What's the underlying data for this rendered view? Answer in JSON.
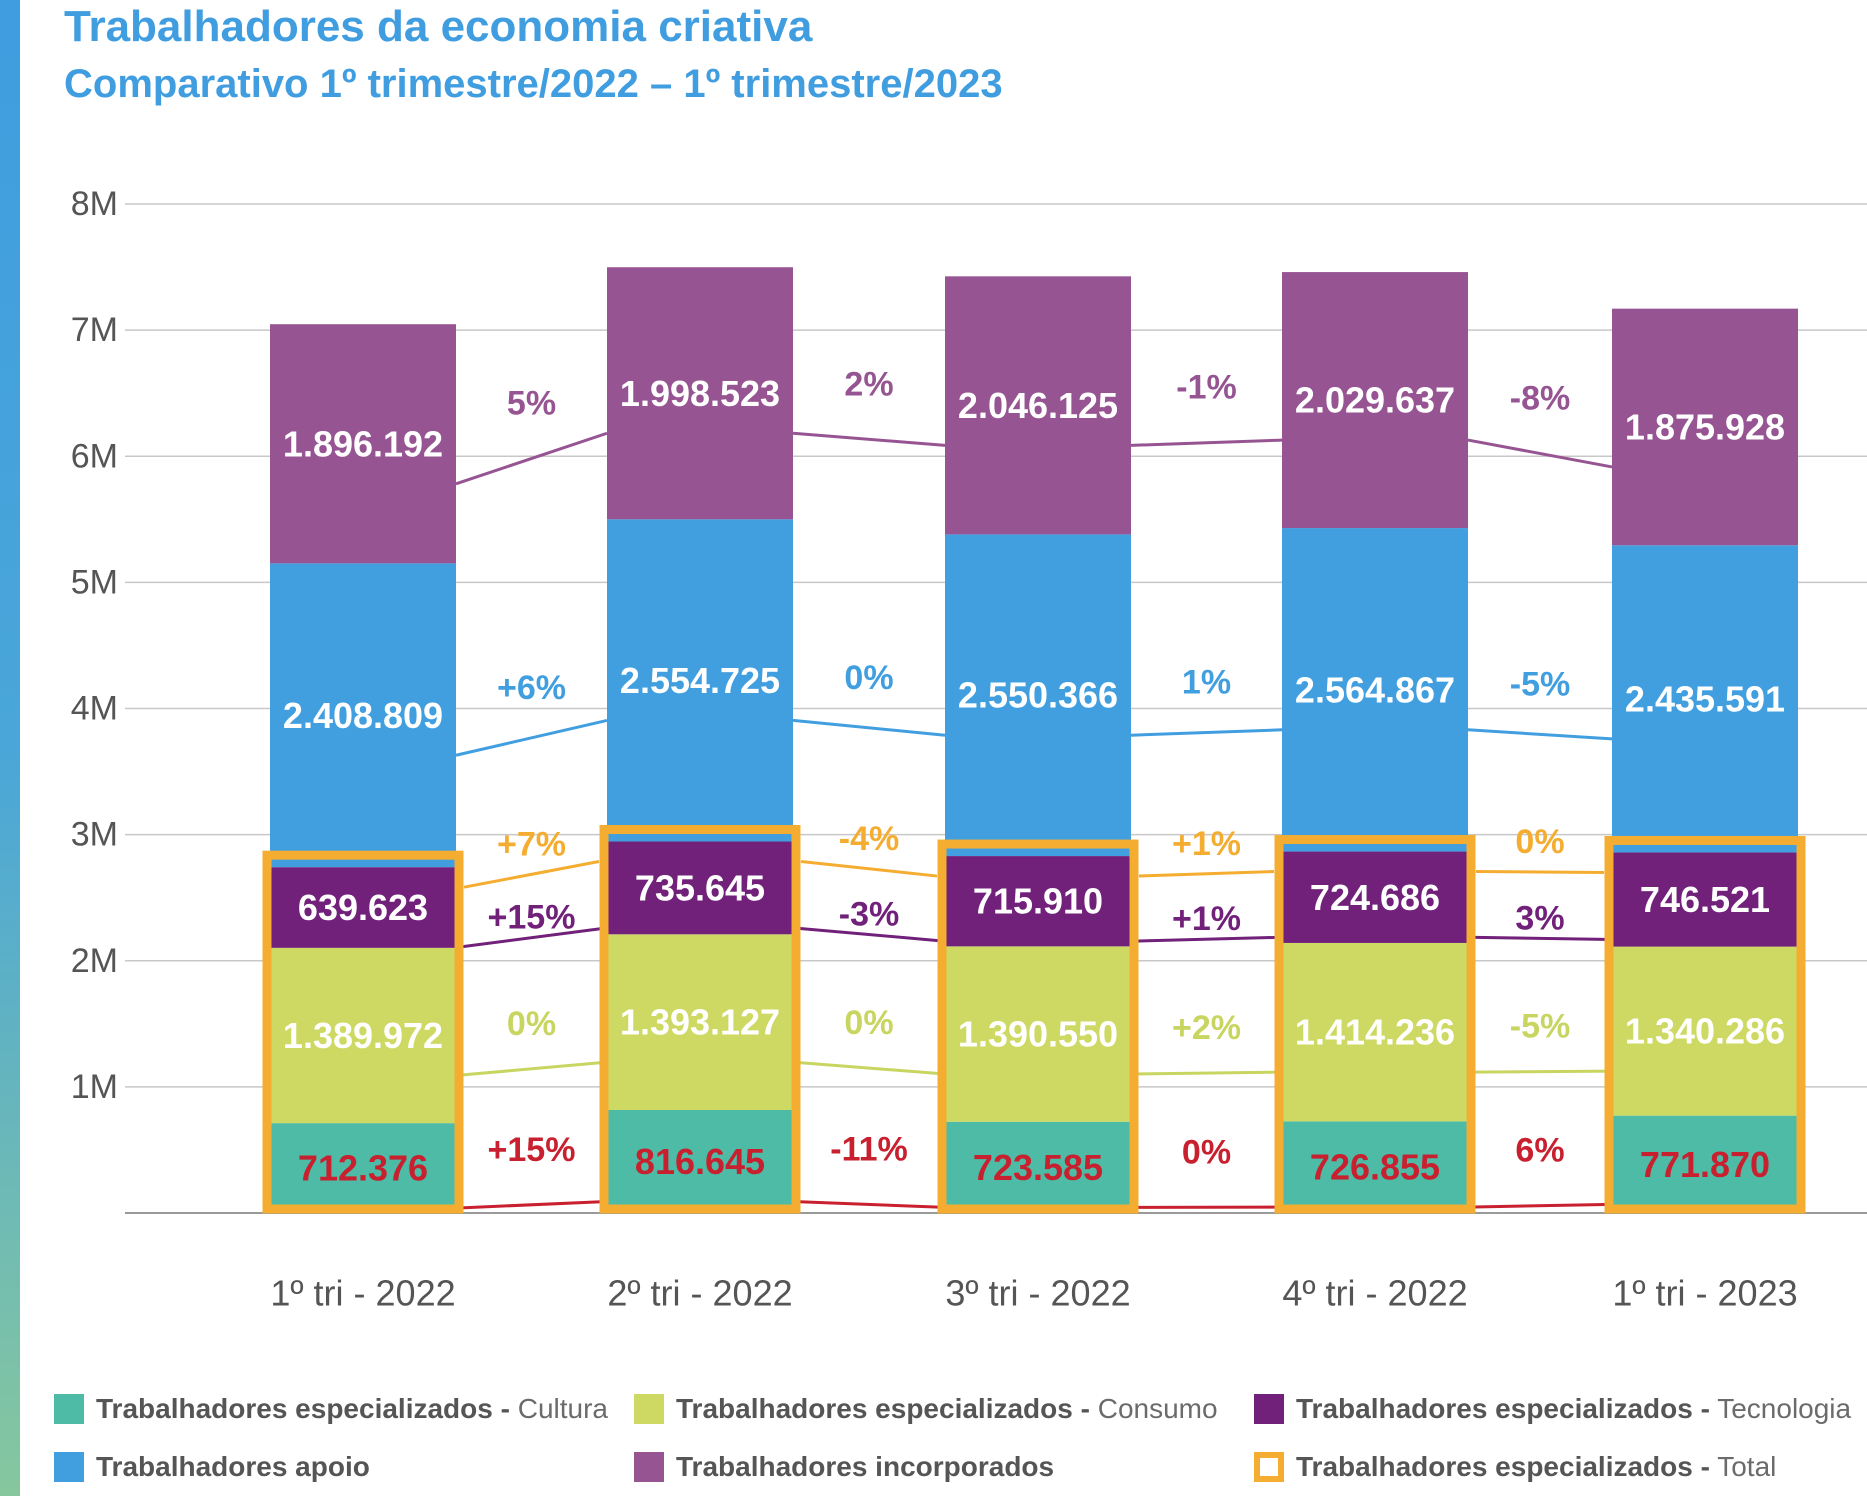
{
  "title": "Trabalhadores da economia criativa",
  "subtitle": "Comparativo 1º trimestre/2022 – 1º trimestre/2023",
  "chart_data": {
    "type": "bar",
    "stacked": true,
    "categories": [
      "1º tri - 2022",
      "2º tri - 2022",
      "3º tri - 2022",
      "4º tri - 2022",
      "1º tri - 2023"
    ],
    "ylim": [
      0,
      8000000
    ],
    "yticks": [
      1000000,
      2000000,
      3000000,
      4000000,
      5000000,
      6000000,
      7000000,
      8000000
    ],
    "ytick_labels": [
      "1M",
      "2M",
      "3M",
      "4M",
      "5M",
      "6M",
      "7M",
      "8M"
    ],
    "grid": true,
    "series": [
      {
        "key": "cultura",
        "name": "Trabalhadores especializados - Cultura",
        "values": [
          712376,
          816645,
          723585,
          726855,
          771870
        ],
        "labels": [
          "712.376",
          "816.645",
          "723.585",
          "726.855",
          "771.870"
        ],
        "changes": [
          "+15%",
          "-11%",
          "0%",
          "6%"
        ],
        "color": "#4dbba5",
        "label_color": "#c8202f",
        "line_color": "#c8202f"
      },
      {
        "key": "consumo",
        "name": "Trabalhadores especializados - Consumo",
        "values": [
          1389972,
          1393127,
          1390550,
          1414236,
          1340286
        ],
        "labels": [
          "1.389.972",
          "1.393.127",
          "1.390.550",
          "1.414.236",
          "1.340.286"
        ],
        "changes": [
          "0%",
          "0%",
          "+2%",
          "-5%"
        ],
        "color": "#cdd962",
        "label_color": "#ffffff",
        "line_color": "#c9d561"
      },
      {
        "key": "tecnologia",
        "name": "Trabalhadores especializados - Tecnologia",
        "values": [
          639623,
          735645,
          715910,
          724686,
          746521
        ],
        "labels": [
          "639.623",
          "735.645",
          "715.910",
          "724.686",
          "746.521"
        ],
        "changes": [
          "+15%",
          "-3%",
          "+1%",
          "3%"
        ],
        "color": "#71217a",
        "label_color": "#ffffff",
        "line_color": "#71217a"
      },
      {
        "key": "apoio",
        "name": "Trabalhadores apoio",
        "values": [
          2408809,
          2554725,
          2550366,
          2564867,
          2435591
        ],
        "labels": [
          "2.408.809",
          "2.554.725",
          "2.550.366",
          "2.564.867",
          "2.435.591"
        ],
        "changes": [
          "+6%",
          "0%",
          "1%",
          "-5%"
        ],
        "color": "#419fe0",
        "label_color": "#ffffff",
        "line_color": "#419fe0"
      },
      {
        "key": "incorporados",
        "name": "Trabalhadores incorporados",
        "values": [
          1896192,
          1998523,
          2046125,
          2029637,
          1875928
        ],
        "labels": [
          "1.896.192",
          "1.998.523",
          "2.046.125",
          "2.029.637",
          "1.875.928"
        ],
        "changes": [
          "5%",
          "2%",
          "-1%",
          "-8%"
        ],
        "color": "#965592",
        "label_color": "#ffffff",
        "line_color": "#965592"
      }
    ],
    "total_highlight": {
      "name": "Trabalhadores especializados - Total",
      "changes": [
        "+7%",
        "-4%",
        "+1%",
        "0%"
      ],
      "color": "#f4ad31"
    },
    "legend": "bottom"
  },
  "legend": [
    {
      "bold": "Trabalhadores especializados -",
      "light": " Cultura",
      "color": "#4dbba5",
      "outline": false
    },
    {
      "bold": "Trabalhadores especializados -",
      "light": " Consumo",
      "color": "#cdd962",
      "outline": false
    },
    {
      "bold": "Trabalhadores especializados -",
      "light": " Tecnologia",
      "color": "#71217a",
      "outline": false
    },
    {
      "bold": "Trabalhadores apoio",
      "light": "",
      "color": "#419fe0",
      "outline": false
    },
    {
      "bold": "Trabalhadores  incorporados",
      "light": "",
      "color": "#965592",
      "outline": false
    },
    {
      "bold": "Trabalhadores especializados -",
      "light": " Total",
      "color": "#f4ad31",
      "outline": true
    }
  ]
}
